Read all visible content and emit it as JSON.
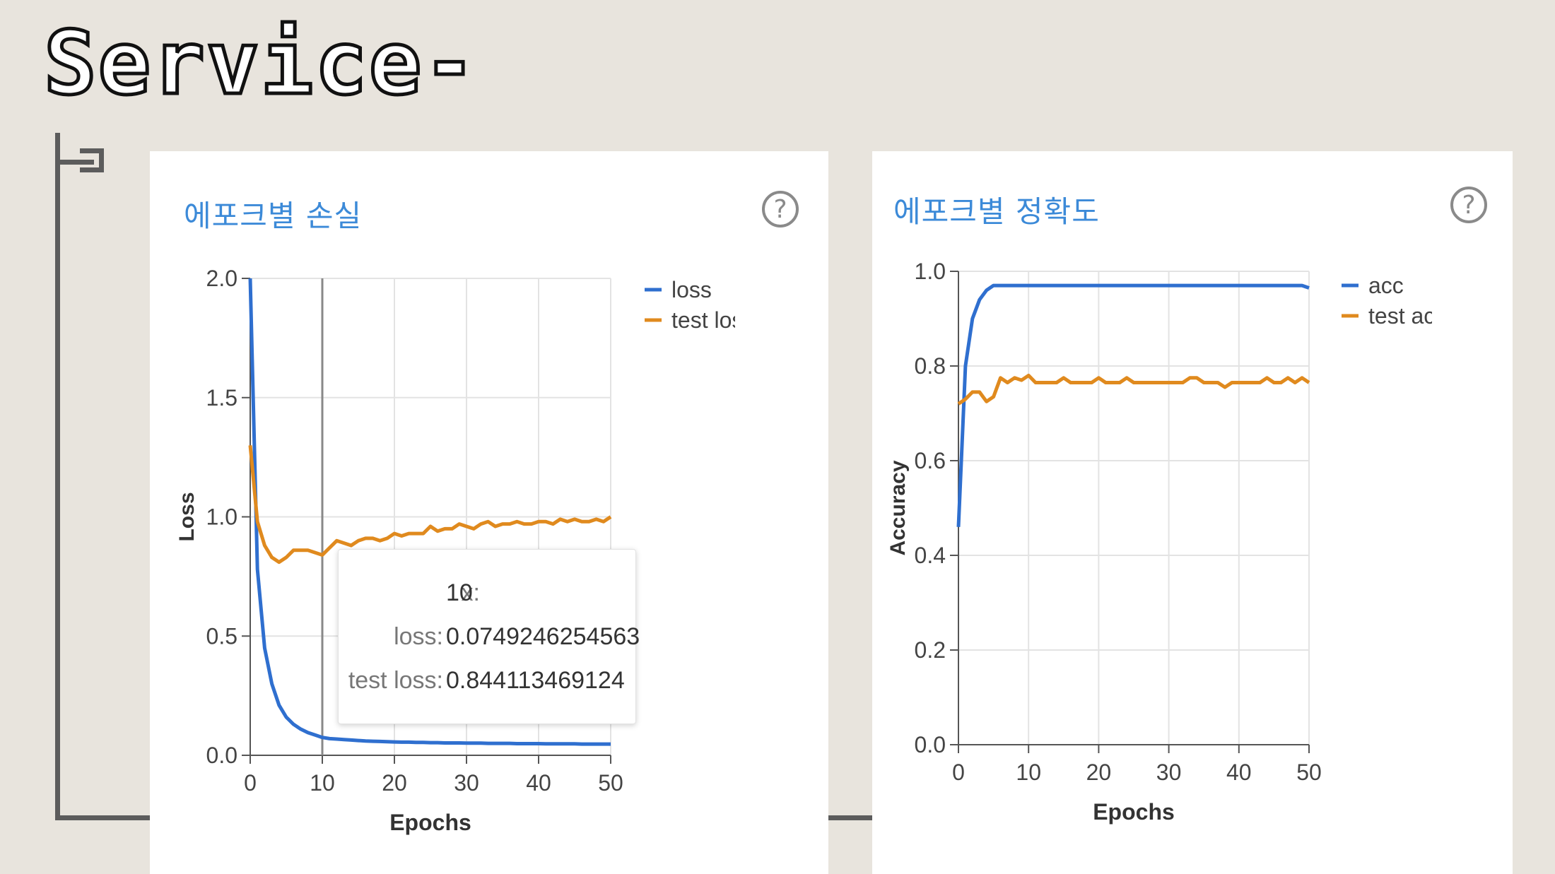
{
  "slide": {
    "title": "Service-"
  },
  "charts_meta": {
    "colors": {
      "train": "#2f6fcf",
      "test": "#e08a1e",
      "grid": "#e3e3e3",
      "title": "#3c8ad8"
    },
    "help_icon": "question-circle-icon"
  },
  "chart_data": [
    {
      "type": "line",
      "title": "에포크별 손실",
      "xlabel": "Epochs",
      "ylabel": "Loss",
      "xlim": [
        0,
        50
      ],
      "ylim": [
        0,
        2
      ],
      "xticks": [
        0,
        10,
        20,
        30,
        40,
        50
      ],
      "yticks": [
        "0.0",
        "0.5",
        "1.0",
        "1.5",
        "2.0"
      ],
      "ytick_values": [
        0,
        0.5,
        1.0,
        1.5,
        2.0
      ],
      "grid": true,
      "legend_position": "right",
      "legend": [
        "loss",
        "test los"
      ],
      "series": [
        {
          "name": "loss",
          "values": [
            2.0,
            0.78,
            0.45,
            0.3,
            0.21,
            0.16,
            0.13,
            0.11,
            0.095,
            0.085,
            0.075,
            0.07,
            0.068,
            0.066,
            0.064,
            0.062,
            0.06,
            0.059,
            0.058,
            0.057,
            0.056,
            0.055,
            0.055,
            0.054,
            0.054,
            0.053,
            0.053,
            0.052,
            0.052,
            0.052,
            0.051,
            0.051,
            0.051,
            0.05,
            0.05,
            0.05,
            0.05,
            0.049,
            0.049,
            0.049,
            0.049,
            0.048,
            0.048,
            0.048,
            0.048,
            0.048,
            0.047,
            0.047,
            0.047,
            0.047,
            0.047
          ]
        },
        {
          "name": "test loss",
          "values": [
            1.3,
            0.98,
            0.88,
            0.83,
            0.81,
            0.83,
            0.86,
            0.86,
            0.86,
            0.85,
            0.84,
            0.87,
            0.9,
            0.89,
            0.88,
            0.9,
            0.91,
            0.91,
            0.9,
            0.91,
            0.93,
            0.92,
            0.93,
            0.93,
            0.93,
            0.96,
            0.94,
            0.95,
            0.95,
            0.97,
            0.96,
            0.95,
            0.97,
            0.98,
            0.96,
            0.97,
            0.97,
            0.98,
            0.97,
            0.97,
            0.98,
            0.98,
            0.97,
            0.99,
            0.98,
            0.99,
            0.98,
            0.98,
            0.99,
            0.98,
            1.0
          ]
        }
      ],
      "hover_x": 10,
      "tooltip": {
        "x_label": "x:",
        "x_value": "10",
        "loss_label": "loss:",
        "loss_value": "0.0749246254563",
        "test_label": "test loss:",
        "test_value": "0.844113469124"
      }
    },
    {
      "type": "line",
      "title": "에포크별 정확도",
      "xlabel": "Epochs",
      "ylabel": "Accuracy",
      "xlim": [
        0,
        50
      ],
      "ylim": [
        0,
        1
      ],
      "xticks": [
        0,
        10,
        20,
        30,
        40,
        50
      ],
      "yticks": [
        "0.0",
        "0.2",
        "0.4",
        "0.6",
        "0.8",
        "1.0"
      ],
      "ytick_values": [
        0,
        0.2,
        0.4,
        0.6,
        0.8,
        1.0
      ],
      "grid": true,
      "legend_position": "right",
      "legend": [
        "acc",
        "test acc"
      ],
      "series": [
        {
          "name": "acc",
          "values": [
            0.46,
            0.8,
            0.9,
            0.94,
            0.96,
            0.97,
            0.97,
            0.97,
            0.97,
            0.97,
            0.97,
            0.97,
            0.97,
            0.97,
            0.97,
            0.97,
            0.97,
            0.97,
            0.97,
            0.97,
            0.97,
            0.97,
            0.97,
            0.97,
            0.97,
            0.97,
            0.97,
            0.97,
            0.97,
            0.97,
            0.97,
            0.97,
            0.97,
            0.97,
            0.97,
            0.97,
            0.97,
            0.97,
            0.97,
            0.97,
            0.97,
            0.97,
            0.97,
            0.97,
            0.97,
            0.97,
            0.97,
            0.97,
            0.97,
            0.97,
            0.965
          ]
        },
        {
          "name": "test acc",
          "values": [
            0.72,
            0.73,
            0.745,
            0.745,
            0.725,
            0.735,
            0.775,
            0.765,
            0.775,
            0.77,
            0.78,
            0.765,
            0.765,
            0.765,
            0.765,
            0.775,
            0.765,
            0.765,
            0.765,
            0.765,
            0.775,
            0.765,
            0.765,
            0.765,
            0.775,
            0.765,
            0.765,
            0.765,
            0.765,
            0.765,
            0.765,
            0.765,
            0.765,
            0.775,
            0.775,
            0.765,
            0.765,
            0.765,
            0.755,
            0.765,
            0.765,
            0.765,
            0.765,
            0.765,
            0.775,
            0.765,
            0.765,
            0.775,
            0.765,
            0.775,
            0.765
          ]
        }
      ]
    }
  ]
}
